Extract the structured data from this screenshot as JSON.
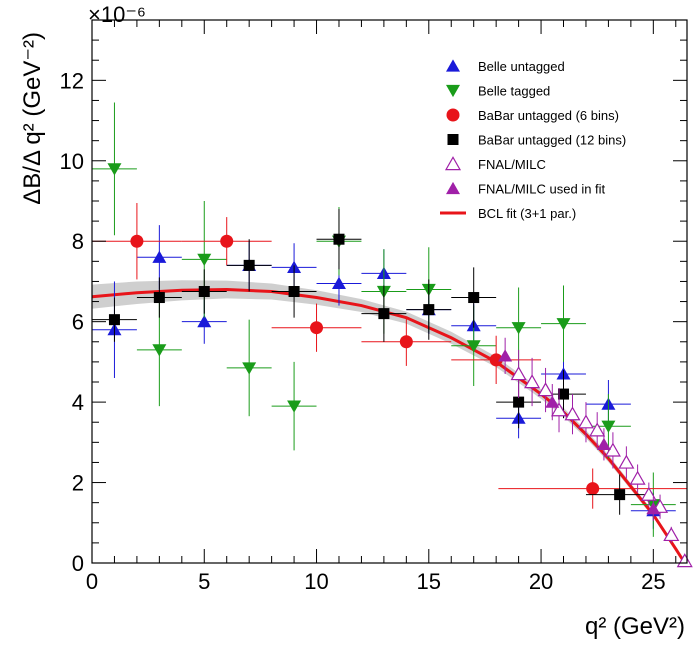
{
  "chart_data": {
    "type": "scatter",
    "title": "",
    "xlabel": "q² (GeV²)",
    "ylabel": "ΔB/Δ q² (GeV⁻²)",
    "y_multiplier": "×10⁻⁶",
    "xlim": [
      0,
      26.5
    ],
    "ylim": [
      0,
      13.5
    ],
    "x_ticks": [
      0,
      5,
      10,
      15,
      20,
      25
    ],
    "y_ticks": [
      0,
      2,
      4,
      6,
      8,
      10,
      12
    ],
    "grid": false,
    "legend_position": "top-right",
    "series": [
      {
        "name": "Belle untagged",
        "marker": "triangle-up",
        "color": "#1a1ad9",
        "points": [
          {
            "x": 1,
            "y": 5.8,
            "xerr": 1,
            "yerr": 1.2
          },
          {
            "x": 3,
            "y": 7.6,
            "xerr": 1,
            "yerr": 0.8
          },
          {
            "x": 5,
            "y": 6.0,
            "xerr": 1,
            "yerr": 0.55
          },
          {
            "x": 7,
            "y": 7.4,
            "xerr": 1,
            "yerr": 0.6
          },
          {
            "x": 9,
            "y": 7.35,
            "xerr": 1,
            "yerr": 0.6
          },
          {
            "x": 11,
            "y": 6.95,
            "xerr": 1,
            "yerr": 0.55
          },
          {
            "x": 13,
            "y": 7.2,
            "xerr": 1,
            "yerr": 0.6
          },
          {
            "x": 15,
            "y": 6.3,
            "xerr": 1,
            "yerr": 0.6
          },
          {
            "x": 17,
            "y": 5.9,
            "xerr": 1,
            "yerr": 0.55
          },
          {
            "x": 19,
            "y": 3.6,
            "xerr": 1,
            "yerr": 0.5
          },
          {
            "x": 21,
            "y": 4.7,
            "xerr": 1,
            "yerr": 0.6
          },
          {
            "x": 23,
            "y": 3.95,
            "xerr": 1,
            "yerr": 0.6
          },
          {
            "x": 25,
            "y": 1.3,
            "xerr": 1,
            "yerr": 0.45
          }
        ]
      },
      {
        "name": "Belle tagged",
        "marker": "triangle-down",
        "color": "#1a9c1a",
        "points": [
          {
            "x": 1,
            "y": 9.8,
            "xerr": 1,
            "yerr": 1.65
          },
          {
            "x": 3,
            "y": 5.3,
            "xerr": 1,
            "yerr": 1.4
          },
          {
            "x": 5,
            "y": 7.55,
            "xerr": 1,
            "yerr": 1.45
          },
          {
            "x": 7,
            "y": 4.85,
            "xerr": 1,
            "yerr": 1.2
          },
          {
            "x": 9,
            "y": 3.9,
            "xerr": 1,
            "yerr": 1.1
          },
          {
            "x": 11,
            "y": 8.0,
            "xerr": 1,
            "yerr": 0.85
          },
          {
            "x": 13,
            "y": 6.75,
            "xerr": 1,
            "yerr": 1.05
          },
          {
            "x": 15,
            "y": 6.8,
            "xerr": 1,
            "yerr": 1.05
          },
          {
            "x": 17,
            "y": 5.4,
            "xerr": 1,
            "yerr": 1.0
          },
          {
            "x": 19,
            "y": 5.85,
            "xerr": 1,
            "yerr": 1.0
          },
          {
            "x": 21,
            "y": 5.95,
            "xerr": 1,
            "yerr": 0.95
          },
          {
            "x": 23,
            "y": 3.4,
            "xerr": 1,
            "yerr": 0.8
          },
          {
            "x": 25,
            "y": 1.45,
            "xerr": 1,
            "yerr": 0.8
          }
        ]
      },
      {
        "name": "BaBar untagged (6 bins)",
        "marker": "circle",
        "color": "#e8141a",
        "points": [
          {
            "x": 2,
            "y": 8.0,
            "xerr": 2,
            "yerr": 0.95
          },
          {
            "x": 6,
            "y": 8.0,
            "xerr": 2,
            "yerr": 0.6
          },
          {
            "x": 10,
            "y": 5.85,
            "xerr": 2,
            "yerr": 0.6
          },
          {
            "x": 14,
            "y": 5.5,
            "xerr": 2,
            "yerr": 0.6
          },
          {
            "x": 18,
            "y": 5.05,
            "xerr": 2,
            "yerr": 0.6
          },
          {
            "x": 22.3,
            "y": 1.85,
            "xerr": 4.2,
            "yerr": 0.5
          }
        ]
      },
      {
        "name": "BaBar untagged (12 bins)",
        "marker": "square",
        "color": "#000000",
        "points": [
          {
            "x": 1,
            "y": 6.05,
            "xerr": 1,
            "yerr": 0.55
          },
          {
            "x": 3,
            "y": 6.6,
            "xerr": 1,
            "yerr": 0.5
          },
          {
            "x": 5,
            "y": 6.75,
            "xerr": 1,
            "yerr": 0.55
          },
          {
            "x": 7,
            "y": 7.4,
            "xerr": 1,
            "yerr": 0.65
          },
          {
            "x": 9,
            "y": 6.75,
            "xerr": 1,
            "yerr": 0.65
          },
          {
            "x": 11,
            "y": 8.05,
            "xerr": 1,
            "yerr": 0.75
          },
          {
            "x": 13,
            "y": 6.2,
            "xerr": 1,
            "yerr": 0.7
          },
          {
            "x": 15,
            "y": 6.3,
            "xerr": 1,
            "yerr": 0.75
          },
          {
            "x": 17,
            "y": 6.6,
            "xerr": 1,
            "yerr": 0.75
          },
          {
            "x": 19,
            "y": 4.0,
            "xerr": 1,
            "yerr": 0.65
          },
          {
            "x": 21,
            "y": 4.2,
            "xerr": 1,
            "yerr": 0.6
          },
          {
            "x": 23.5,
            "y": 1.7,
            "xerr": 1.5,
            "yerr": 0.5
          }
        ]
      },
      {
        "name": "FNAL/MILC",
        "marker": "triangle-up-open",
        "color": "#a020a8",
        "points": [
          {
            "x": 19.0,
            "y": 4.7,
            "yerr": 0.6
          },
          {
            "x": 19.6,
            "y": 4.5,
            "yerr": 0.6
          },
          {
            "x": 20.2,
            "y": 4.3,
            "yerr": 0.55
          },
          {
            "x": 20.8,
            "y": 3.8,
            "yerr": 0.55
          },
          {
            "x": 21.4,
            "y": 3.7,
            "yerr": 0.5
          },
          {
            "x": 22.0,
            "y": 3.5,
            "yerr": 0.5
          },
          {
            "x": 22.5,
            "y": 3.3,
            "yerr": 0.45
          },
          {
            "x": 23.2,
            "y": 2.8,
            "yerr": 0.45
          },
          {
            "x": 23.8,
            "y": 2.5,
            "yerr": 0.4
          },
          {
            "x": 24.3,
            "y": 2.1,
            "yerr": 0.35
          },
          {
            "x": 24.8,
            "y": 1.7,
            "yerr": 0.3
          },
          {
            "x": 25.3,
            "y": 1.4,
            "yerr": 0.3
          },
          {
            "x": 25.8,
            "y": 0.7,
            "yerr": 0.2
          },
          {
            "x": 26.4,
            "y": 0.05,
            "yerr": 0.05
          }
        ]
      },
      {
        "name": "FNAL/MILC used in fit",
        "marker": "triangle-up",
        "color": "#a020a8",
        "points": [
          {
            "x": 18.4,
            "y": 5.15,
            "yerr": 0.45
          },
          {
            "x": 20.5,
            "y": 4.0,
            "yerr": 0.45
          },
          {
            "x": 22.8,
            "y": 2.95,
            "yerr": 0.4
          },
          {
            "x": 25.0,
            "y": 1.35,
            "yerr": 0.3
          }
        ]
      },
      {
        "name": "BCL fit (3+1 par.)",
        "type": "line",
        "color": "#e8141a",
        "x": [
          0,
          2,
          4,
          6,
          8,
          10,
          12,
          14,
          16,
          17,
          18,
          19,
          20,
          21,
          22,
          23,
          24,
          25,
          26,
          26.4
        ],
        "y": [
          6.62,
          6.72,
          6.78,
          6.8,
          6.75,
          6.6,
          6.4,
          6.1,
          5.6,
          5.3,
          5.0,
          4.6,
          4.2,
          3.75,
          3.2,
          2.6,
          1.9,
          1.2,
          0.35,
          0.0
        ],
        "band": [
          0.3,
          0.28,
          0.25,
          0.22,
          0.2,
          0.18,
          0.16,
          0.15,
          0.15,
          0.14,
          0.13,
          0.12,
          0.12,
          0.11,
          0.1,
          0.09,
          0.08,
          0.07,
          0.05,
          0.03
        ]
      }
    ]
  }
}
